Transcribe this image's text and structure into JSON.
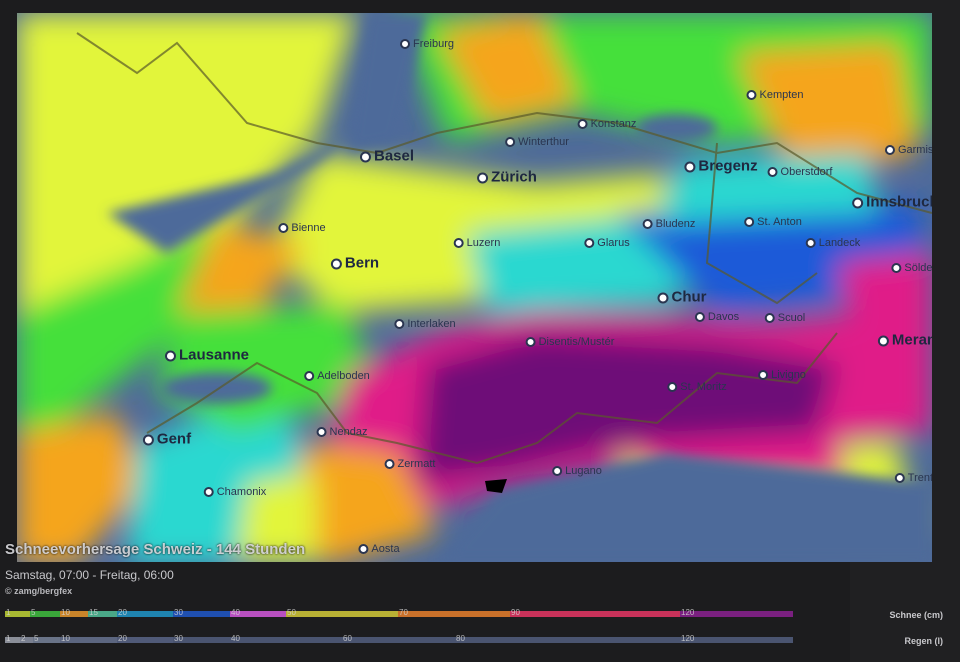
{
  "title": "Schneevorhersage Schweiz - 144 Stunden",
  "period": "Samstag, 07:00 - Freitag, 06:00",
  "credit": "© zamg/bergfex",
  "cities": [
    {
      "name": "Freiburg",
      "major": false
    },
    {
      "name": "Basel",
      "major": true
    },
    {
      "name": "Konstanz",
      "major": false
    },
    {
      "name": "Winterthur",
      "major": false
    },
    {
      "name": "Zürich",
      "major": true
    },
    {
      "name": "Bregenz",
      "major": true
    },
    {
      "name": "Kempten",
      "major": false
    },
    {
      "name": "Oberstdorf",
      "major": false
    },
    {
      "name": "Garmisch",
      "major": false
    },
    {
      "name": "Innsbruck",
      "major": true
    },
    {
      "name": "Bienne",
      "major": false
    },
    {
      "name": "Bern",
      "major": true
    },
    {
      "name": "Luzern",
      "major": false
    },
    {
      "name": "Glarus",
      "major": false
    },
    {
      "name": "Bludenz",
      "major": false
    },
    {
      "name": "St. Anton",
      "major": false
    },
    {
      "name": "Landeck",
      "major": false
    },
    {
      "name": "Sölden",
      "major": false
    },
    {
      "name": "Chur",
      "major": true
    },
    {
      "name": "Davos",
      "major": false
    },
    {
      "name": "Scuol",
      "major": false
    },
    {
      "name": "Interlaken",
      "major": false
    },
    {
      "name": "Disentis/Mustér",
      "major": false
    },
    {
      "name": "Meran",
      "major": true
    },
    {
      "name": "Lausanne",
      "major": true
    },
    {
      "name": "Adelboden",
      "major": false
    },
    {
      "name": "St. Moritz",
      "major": false
    },
    {
      "name": "Livigno",
      "major": false
    },
    {
      "name": "Genf",
      "major": true
    },
    {
      "name": "Nendaz",
      "major": false
    },
    {
      "name": "Zermatt",
      "major": false
    },
    {
      "name": "Lugano",
      "major": false
    },
    {
      "name": "Chamonix",
      "major": false
    },
    {
      "name": "Aosta",
      "major": false
    },
    {
      "name": "Trento",
      "major": false
    }
  ],
  "snow_scale": {
    "label": "Schnee (cm)",
    "ticks": [
      "1",
      "5",
      "10",
      "15",
      "20",
      "30",
      "40",
      "50",
      "70",
      "90",
      "120"
    ],
    "colors": [
      "#a8b832",
      "#3aa63a",
      "#c8842a",
      "#4aa888",
      "#1f84b0",
      "#1f4fb0",
      "#b850c0",
      "#b8b034",
      "#c8702a",
      "#c8325a",
      "#7a2080"
    ]
  },
  "rain_scale": {
    "label": "Regen (l)",
    "ticks": [
      "1",
      "2",
      "5",
      "10",
      "20",
      "30",
      "40",
      "60",
      "80",
      "120"
    ],
    "colors": [
      "#8a8e98",
      "#7a8090",
      "#6a7488",
      "#5c6680",
      "#505a78",
      "#4a5470"
    ]
  },
  "map_colors": {
    "water_low": "#4e6a9a",
    "green": "#44e03a",
    "yellow": "#e2f53a",
    "orange": "#f5a51a",
    "cyan": "#2ad8d0",
    "blue": "#1e5ad8",
    "magenta": "#e01e88",
    "purple": "#6e0a78"
  }
}
